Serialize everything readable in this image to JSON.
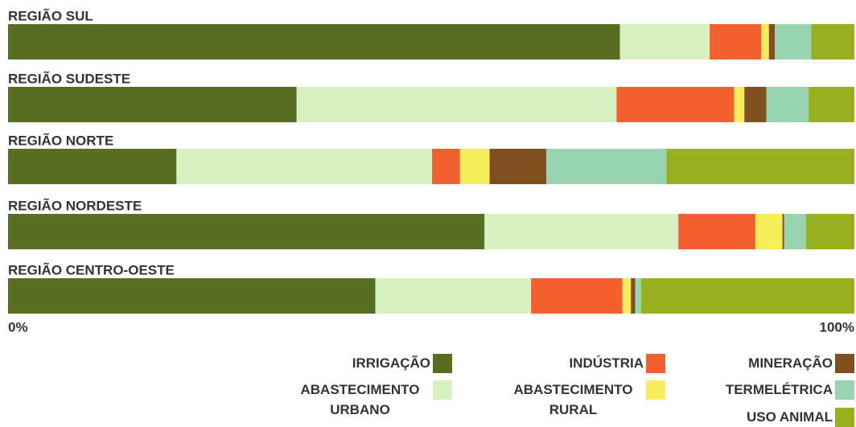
{
  "chart_data": {
    "type": "stacked-bar-horizontal",
    "categories": [
      "REGIÃO SUL",
      "REGIÃO SUDESTE",
      "REGIÃO NORTE",
      "REGIÃO NORDESTE",
      "REGIÃO CENTRO-OESTE"
    ],
    "xlim": [
      0,
      100
    ],
    "xticks": [
      {
        "value": 0,
        "label": "0%"
      },
      {
        "value": 100,
        "label": "100%"
      }
    ],
    "series": [
      {
        "name": "IRRIGAÇÃO",
        "color": "#5a6e23",
        "values": [
          72.3,
          34.1,
          19.9,
          56.3,
          43.4
        ]
      },
      {
        "name": "ABASTECIMENTO URBANO",
        "color": "#d9f0c0",
        "values": [
          10.6,
          37.8,
          30.2,
          22.9,
          18.4
        ]
      },
      {
        "name": "INDÚSTRIA",
        "color": "#f26030",
        "values": [
          6.1,
          13.9,
          3.3,
          9.1,
          10.8
        ]
      },
      {
        "name": "ABASTECIMENTO RURAL",
        "color": "#f5ee5a",
        "values": [
          0.9,
          1.2,
          3.5,
          3.2,
          1.0
        ]
      },
      {
        "name": "MINERAÇÃO",
        "color": "#7f4f22",
        "values": [
          0.7,
          2.6,
          6.7,
          0.2,
          0.5
        ]
      },
      {
        "name": "TERMELÉTRICA",
        "color": "#99d4b0",
        "values": [
          4.3,
          5.0,
          14.2,
          2.6,
          0.7
        ]
      },
      {
        "name": "USO ANIMAL",
        "color": "#98b020",
        "values": [
          5.1,
          5.4,
          22.2,
          5.7,
          25.2
        ]
      }
    ]
  }
}
